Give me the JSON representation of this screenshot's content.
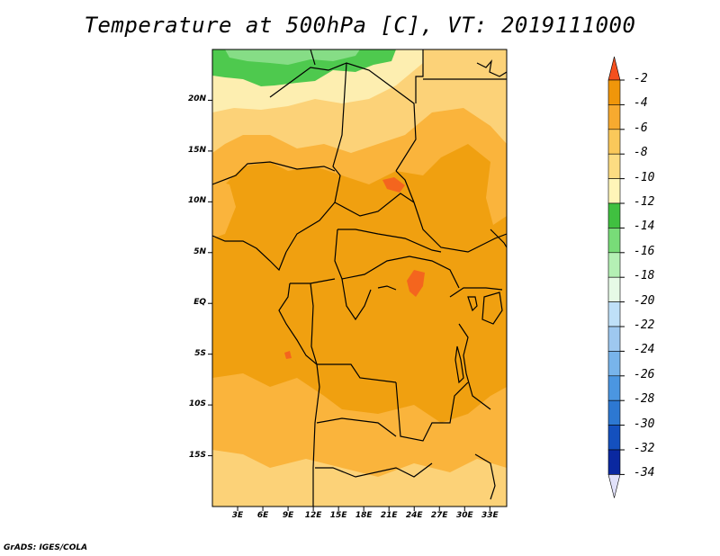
{
  "title": "Temperature at 500hPa [C], VT: 2019111000",
  "footer": "GrADS: IGES/COLA",
  "map": {
    "lon_range": [
      0,
      35
    ],
    "lat_range": [
      -20,
      25
    ],
    "lat_ticks": [
      "20N",
      "15N",
      "10N",
      "5N",
      "EQ",
      "5S",
      "10S",
      "15S"
    ],
    "lon_ticks": [
      "3E",
      "6E",
      "9E",
      "12E",
      "15E",
      "18E",
      "21E",
      "24E",
      "27E",
      "30E",
      "33E"
    ]
  },
  "colorbar": {
    "levels": [
      "-2",
      "-4",
      "-6",
      "-8",
      "-10",
      "-12",
      "-14",
      "-16",
      "-18",
      "-20",
      "-22",
      "-24",
      "-26",
      "-28",
      "-30",
      "-32",
      "-34"
    ],
    "colors": [
      "#f4501e",
      "#f0960a",
      "#f7aa2f",
      "#fac85a",
      "#fcdc82",
      "#fff5b8",
      "#40c040",
      "#78dc78",
      "#b4f0b4",
      "#e6fae6",
      "#bfe0f8",
      "#9ec8f0",
      "#78b4eb",
      "#4b96e1",
      "#2d78d2",
      "#1450be",
      "#0a28a0",
      "#0a0a64"
    ],
    "top_arrow_color": "#f4501e",
    "bottom_arrow_color": "#e1e1fa"
  },
  "field_colors": {
    "base": "#f0a010",
    "warm": "#fab43c",
    "light": "#fcd278",
    "pale": "#fdeeb0",
    "green": "#4ec94e",
    "light_green": "#86dd86",
    "hot": "#f4651e",
    "border": "#000000"
  }
}
